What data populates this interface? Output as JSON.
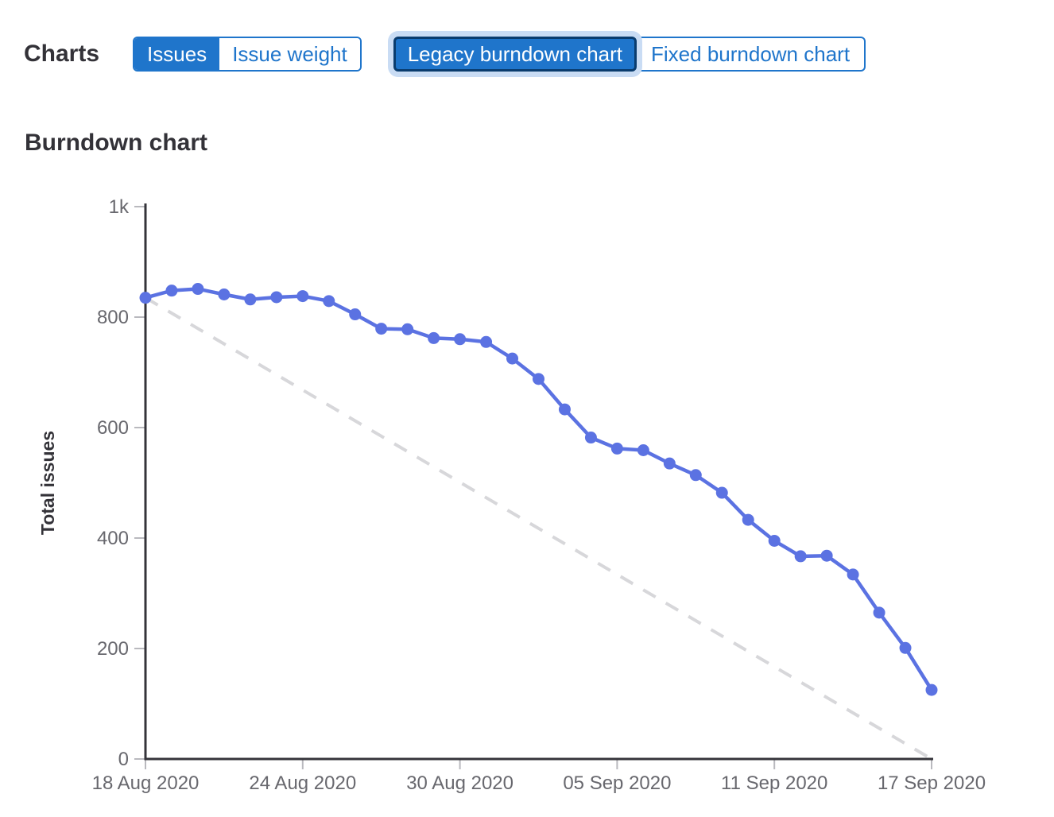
{
  "toolbar": {
    "charts_label": "Charts",
    "metric_toggle": {
      "selected": "Issues",
      "options": [
        {
          "label": "Issues",
          "selected": true
        },
        {
          "label": "Issue weight",
          "selected": false
        }
      ]
    },
    "type_toggle": {
      "selected": "Legacy burndown chart",
      "options": [
        {
          "label": "Legacy burndown chart",
          "selected": true,
          "focused": true
        },
        {
          "label": "Fixed burndown chart",
          "selected": false
        }
      ]
    }
  },
  "section": {
    "title": "Burndown chart"
  },
  "chart_data": {
    "type": "line",
    "title": "Burndown chart",
    "xlabel": "",
    "ylabel": "Total issues",
    "ylim": [
      0,
      1000
    ],
    "x_range_days": 30,
    "grid": false,
    "legend": "none",
    "yticks": [
      {
        "value": 0,
        "label": "0"
      },
      {
        "value": 200,
        "label": "200"
      },
      {
        "value": 400,
        "label": "400"
      },
      {
        "value": 600,
        "label": "600"
      },
      {
        "value": 800,
        "label": "800"
      },
      {
        "value": 1000,
        "label": "1k"
      }
    ],
    "xticks": [
      {
        "day": 0,
        "label": "18 Aug 2020"
      },
      {
        "day": 6,
        "label": "24 Aug 2020"
      },
      {
        "day": 12,
        "label": "30 Aug 2020"
      },
      {
        "day": 18,
        "label": "05 Sep 2020"
      },
      {
        "day": 24,
        "label": "11 Sep 2020"
      },
      {
        "day": 30,
        "label": "17 Sep 2020"
      }
    ],
    "series": [
      {
        "name": "open_issues",
        "style": "solid",
        "marker": "circle",
        "color": "#5b72e2",
        "values": [
          835,
          848,
          851,
          841,
          832,
          836,
          838,
          829,
          805,
          779,
          778,
          762,
          760,
          755,
          725,
          688,
          633,
          582,
          562,
          559,
          535,
          514,
          482,
          433,
          395,
          367,
          368,
          334,
          265,
          201,
          125
        ]
      },
      {
        "name": "ideal_guideline",
        "style": "dashed",
        "color": "#d7d7da",
        "points": [
          {
            "day": 0,
            "value": 835
          },
          {
            "day": 30,
            "value": 0
          }
        ]
      }
    ],
    "axis_colors": {
      "axis": "#35343a",
      "tick": "#b9b9be",
      "tick_label": "#68686e"
    }
  },
  "colors": {
    "accent_blue": "#1f75cb",
    "selected_border": "#0a3c6e",
    "focus_ring": "#c9dcf4",
    "line_blue": "#5b72e2",
    "guideline_gray": "#d7d7da"
  }
}
